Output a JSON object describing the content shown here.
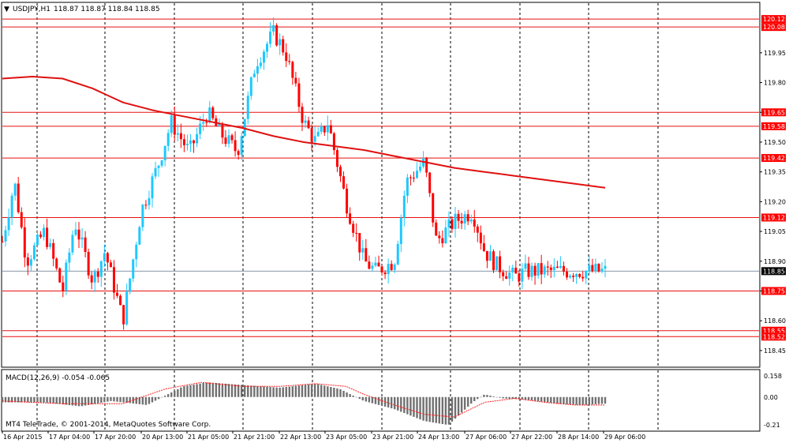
{
  "header": {
    "symbol": "USDJPY,H1",
    "ohlc": "118.87 118.87 118.84 118.85"
  },
  "indicator": {
    "label": "MACD(12,26,9) -0.054 -0.065"
  },
  "copyright": "MT4 TeleTrade, © 2001-2014, MetaQuotes Software Corp.",
  "colors": {
    "bull": "#1ec8ff",
    "bear": "#ff0000",
    "ma": "#e01010",
    "level": "#e81010",
    "grid": "#000000",
    "current": "#8a98a8",
    "histogram": "#707070",
    "signal": "#ff2020"
  },
  "chart_data": {
    "type": "candlestick",
    "timeframe": "H1",
    "price_axis": {
      "ylim": [
        118.37,
        120.2
      ],
      "ticks": [
        "119.95",
        "119.80",
        "119.65",
        "119.50",
        "119.35",
        "119.20",
        "119.05",
        "118.90",
        "118.75",
        "118.60",
        "118.45"
      ]
    },
    "time_axis": {
      "labels": [
        "16 Apr 2015",
        "17 Apr 04:00",
        "17 Apr 20:00",
        "20 Apr 13:00",
        "21 Apr 05:00",
        "21 Apr 21:00",
        "22 Apr 13:00",
        "23 Apr 05:00",
        "23 Apr 21:00",
        "24 Apr 13:00",
        "27 Apr 06:00",
        "27 Apr 22:00",
        "28 Apr 14:00",
        "29 Apr 06:00"
      ]
    },
    "levels": [
      {
        "label": "120.12",
        "value": 120.12
      },
      {
        "label": "120.08",
        "value": 120.08
      },
      {
        "label": "119.65",
        "value": 119.65
      },
      {
        "label": "119.58",
        "value": 119.58
      },
      {
        "label": "119.42",
        "value": 119.42
      },
      {
        "label": "119.12",
        "value": 119.12
      },
      {
        "label": "118.75",
        "value": 118.75
      },
      {
        "label": "118.55",
        "value": 118.55
      },
      {
        "label": "118.52",
        "value": 118.52
      }
    ],
    "current_price": {
      "label": "118.85",
      "value": 118.85
    },
    "moving_average": {
      "x": [
        0,
        0.05,
        0.1,
        0.15,
        0.2,
        0.25,
        0.3,
        0.35,
        0.4,
        0.45,
        0.5,
        0.55,
        0.6,
        0.65,
        0.7,
        0.75,
        0.8,
        0.85,
        0.9,
        0.95,
        1.0
      ],
      "y": [
        119.82,
        119.83,
        119.82,
        119.77,
        119.7,
        119.66,
        119.63,
        119.6,
        119.57,
        119.53,
        119.5,
        119.48,
        119.46,
        119.43,
        119.4,
        119.37,
        119.35,
        119.33,
        119.31,
        119.29,
        119.27
      ]
    },
    "price_anchors": {
      "x": [
        0,
        0.02,
        0.04,
        0.07,
        0.1,
        0.12,
        0.15,
        0.17,
        0.2,
        0.23,
        0.26,
        0.28,
        0.31,
        0.34,
        0.36,
        0.39,
        0.42,
        0.45,
        0.47,
        0.5,
        0.52,
        0.54,
        0.57,
        0.6,
        0.62,
        0.65,
        0.67,
        0.7,
        0.72,
        0.75,
        0.78,
        0.8,
        0.82,
        0.85,
        0.87,
        0.89,
        0.92,
        0.94,
        0.97,
        1.0
      ],
      "y": [
        119.0,
        119.3,
        118.9,
        119.05,
        118.75,
        119.1,
        118.8,
        118.95,
        118.6,
        119.15,
        119.4,
        119.6,
        119.45,
        119.65,
        119.55,
        119.45,
        119.9,
        120.05,
        119.95,
        119.6,
        119.5,
        119.6,
        119.2,
        118.9,
        118.85,
        118.9,
        119.3,
        119.4,
        119.0,
        119.1,
        119.15,
        118.95,
        118.88,
        118.82,
        118.85,
        118.85,
        118.85,
        118.85,
        118.85,
        118.85
      ]
    },
    "macd": {
      "ticks": [
        "0.158",
        "0.00",
        "-0.21"
      ],
      "ylim": [
        -0.25,
        0.2
      ],
      "histogram": {
        "x": [
          0,
          0.07,
          0.13,
          0.18,
          0.24,
          0.3,
          0.34,
          0.4,
          0.46,
          0.52,
          0.56,
          0.6,
          0.65,
          0.7,
          0.74,
          0.78,
          0.8,
          0.83,
          0.87,
          0.92,
          0.96,
          1.0
        ],
        "y": [
          -0.04,
          -0.04,
          -0.07,
          -0.03,
          -0.06,
          0.08,
          0.11,
          0.09,
          0.07,
          0.1,
          0.06,
          -0.03,
          -0.09,
          -0.18,
          -0.21,
          -0.04,
          0.02,
          -0.01,
          -0.02,
          -0.05,
          -0.06,
          -0.05
        ]
      },
      "signal": {
        "x": [
          0,
          0.1,
          0.2,
          0.27,
          0.33,
          0.4,
          0.46,
          0.52,
          0.57,
          0.6,
          0.65,
          0.7,
          0.75,
          0.8,
          0.85,
          0.9,
          0.95,
          1.0
        ],
        "y": [
          -0.03,
          -0.05,
          -0.05,
          0.06,
          0.11,
          0.08,
          0.08,
          0.1,
          0.08,
          0.02,
          -0.06,
          -0.13,
          -0.15,
          -0.04,
          -0.01,
          -0.04,
          -0.06,
          -0.06
        ]
      }
    }
  }
}
